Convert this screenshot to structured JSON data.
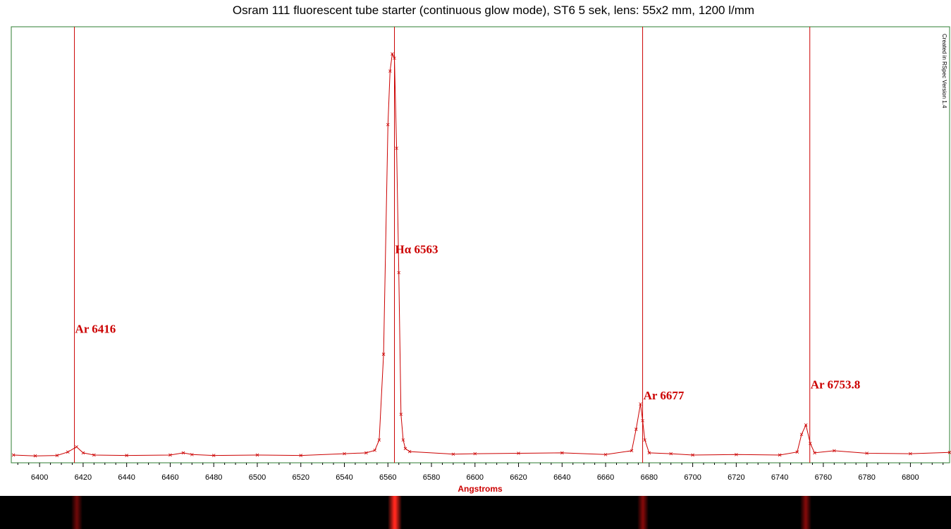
{
  "chart_data": {
    "type": "line",
    "title": "Osram 111 fluorescent tube starter (continuous glow mode), ST6 5 sek,  lens: 55x2 mm, 1200 l/mm",
    "xlabel": "Angstroms",
    "ylabel": "",
    "xlim": [
      6387,
      6818
    ],
    "ylim": [
      0,
      100
    ],
    "x_ticks": [
      6400,
      6420,
      6440,
      6460,
      6480,
      6500,
      6520,
      6540,
      6560,
      6580,
      6600,
      6620,
      6640,
      6660,
      6680,
      6700,
      6720,
      6740,
      6760,
      6780,
      6800
    ],
    "grid": false,
    "series": [
      {
        "color": "#cc0000",
        "x": [
          6388,
          6398,
          6408,
          6413,
          6417,
          6420,
          6425,
          6440,
          6460,
          6466,
          6470,
          6480,
          6500,
          6520,
          6540,
          6550,
          6554,
          6556,
          6558,
          6560,
          6561,
          6562,
          6563,
          6564,
          6565,
          6566,
          6567,
          6568,
          6570,
          6590,
          6600,
          6620,
          6640,
          6660,
          6672,
          6674,
          6676,
          6677,
          6678,
          6680,
          6690,
          6700,
          6720,
          6740,
          6748,
          6750,
          6752,
          6754,
          6756,
          6765,
          6780,
          6800,
          6818
        ],
        "y": [
          0.5,
          0.3,
          0.4,
          1.2,
          2.4,
          1.0,
          0.5,
          0.4,
          0.5,
          1.0,
          0.6,
          0.4,
          0.5,
          0.4,
          0.8,
          1.0,
          1.6,
          4.0,
          24.0,
          77.5,
          90,
          94,
          93,
          72,
          43,
          10,
          4,
          2,
          1.3,
          0.7,
          0.8,
          0.9,
          1.0,
          0.6,
          1.5,
          6.5,
          12.4,
          8.5,
          4.0,
          1.0,
          0.8,
          0.5,
          0.6,
          0.5,
          1.2,
          5.3,
          7.5,
          3.2,
          1.0,
          1.5,
          0.9,
          0.8,
          1.1
        ]
      }
    ],
    "reference_lines": [
      {
        "x": 6416,
        "label": "Ar 6416",
        "label_y": 29
      },
      {
        "x": 6563,
        "label": "Hα 6563",
        "label_y": 47.5
      },
      {
        "x": 6677,
        "label": "Ar 6677",
        "label_y": 13.5
      },
      {
        "x": 6753.8,
        "label": "Ar 6753.8",
        "label_y": 16
      }
    ],
    "annotations": [
      "Created in RSpec Version 1.4"
    ]
  },
  "spectrum_strip": {
    "background": "#000000",
    "glows": [
      {
        "x": 6417,
        "strength": 0.15
      },
      {
        "x": 6563,
        "strength": 1.0
      },
      {
        "x": 6677,
        "strength": 0.3
      },
      {
        "x": 6752,
        "strength": 0.3
      }
    ]
  },
  "colors": {
    "plot_border": "#2e7d32",
    "series": "#cc0000",
    "reference_line": "#cc0000"
  }
}
